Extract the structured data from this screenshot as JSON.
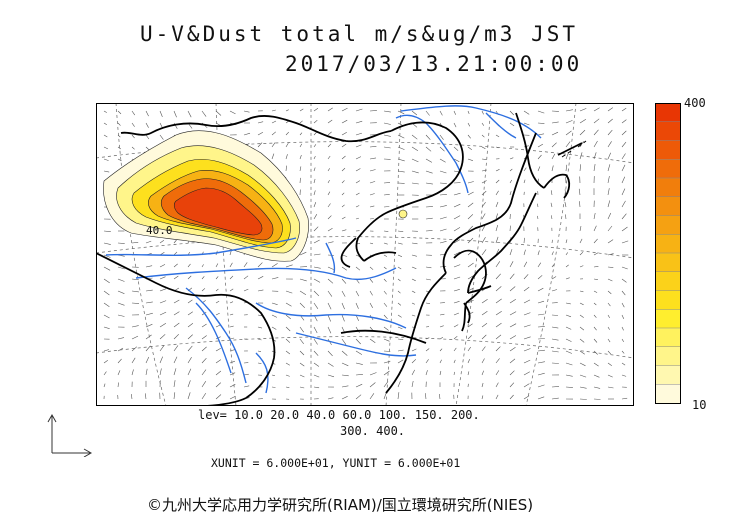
{
  "title": "U-V&Dust total m/s&ug/m3 JST",
  "datetime": "2017/03/13.21:00:00",
  "colorbar": {
    "max_label": "400",
    "min_label": "10",
    "colors": [
      "#fffadc",
      "#fff8b0",
      "#fff58a",
      "#fff25e",
      "#ffee2e",
      "#fde01e",
      "#fbd21a",
      "#f9c217",
      "#f7b214",
      "#f5a112",
      "#f3900f",
      "#f17e0c",
      "#ef6c0a",
      "#ed5a08",
      "#eb4806",
      "#e83604"
    ]
  },
  "contour_label": "40.0",
  "levels_line1": "lev= 10.0 20.0 40.0 60.0 100. 150. 200.",
  "levels_line2": "300. 400.",
  "units_line": "XUNIT = 6.000E+01, YUNIT = 6.000E+01",
  "copyright": "©九州大学応用力学研究所(RIAM)/国立環境研究所(NIES)"
}
